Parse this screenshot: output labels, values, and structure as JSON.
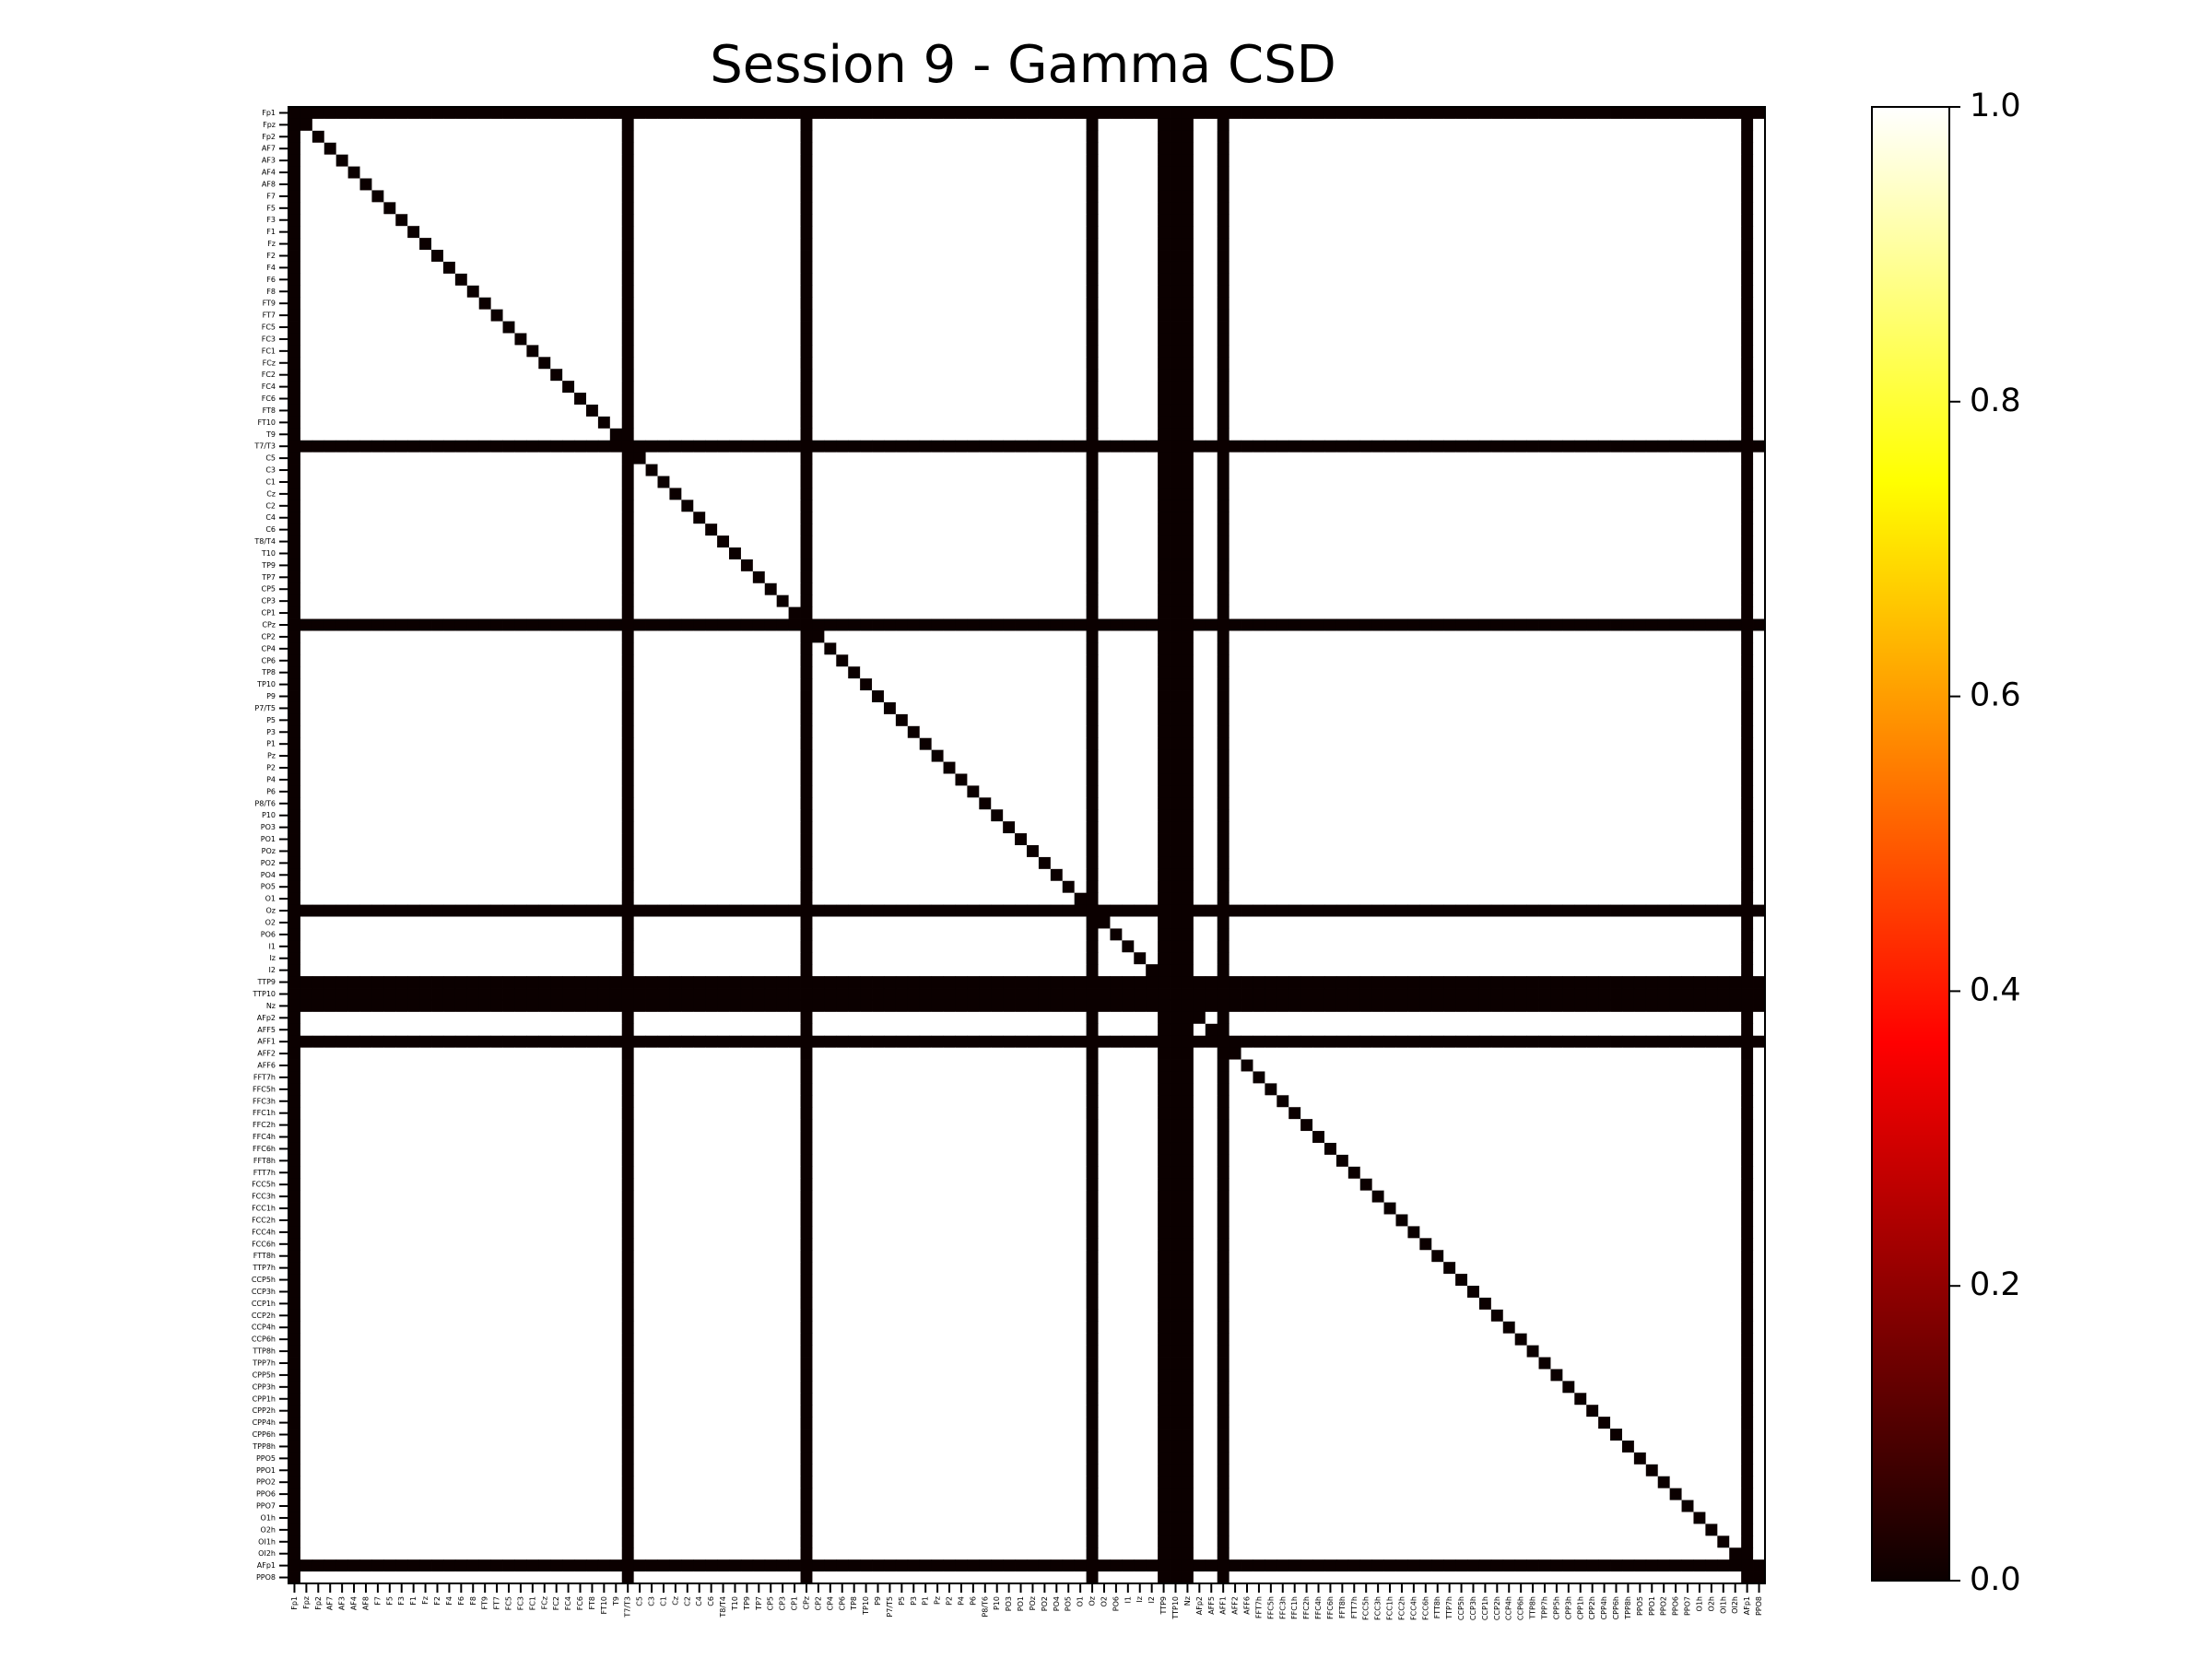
{
  "chart_data": {
    "type": "heatmap",
    "title": "Session 9 - Gamma CSD",
    "xlabel": "",
    "ylabel": "",
    "channels": [
      "Fp1",
      "Fpz",
      "Fp2",
      "AF7",
      "AF3",
      "AF4",
      "AF8",
      "F7",
      "F5",
      "F3",
      "F1",
      "Fz",
      "F2",
      "F4",
      "F6",
      "F8",
      "FT9",
      "FT7",
      "FC5",
      "FC3",
      "FC1",
      "FCz",
      "FC2",
      "FC4",
      "FC6",
      "FT8",
      "FT10",
      "T9",
      "T7/T3",
      "C5",
      "C3",
      "C1",
      "Cz",
      "C2",
      "C4",
      "C6",
      "T8/T4",
      "T10",
      "TP9",
      "TP7",
      "CP5",
      "CP3",
      "CP1",
      "CPz",
      "CP2",
      "CP4",
      "CP6",
      "TP8",
      "TP10",
      "P9",
      "P7/T5",
      "P5",
      "P3",
      "P1",
      "Pz",
      "P2",
      "P4",
      "P6",
      "P8/T6",
      "P10",
      "PO3",
      "PO1",
      "POz",
      "PO2",
      "PO4",
      "PO5",
      "O1",
      "Oz",
      "O2",
      "PO6",
      "I1",
      "Iz",
      "I2",
      "TTP9",
      "TTP10",
      "Nz",
      "AFp2",
      "AFF5",
      "AFF1",
      "AFF2",
      "AFF6",
      "FFT7h",
      "FFC5h",
      "FFC3h",
      "FFC1h",
      "FFC2h",
      "FFC4h",
      "FFC6h",
      "FFT8h",
      "FTT7h",
      "FCC5h",
      "FCC3h",
      "FCC1h",
      "FCC2h",
      "FCC4h",
      "FCC6h",
      "FTT8h",
      "TTP7h",
      "CCP5h",
      "CCP3h",
      "CCP1h",
      "CCP2h",
      "CCP4h",
      "CCP6h",
      "TTP8h",
      "TPP7h",
      "CPP5h",
      "CPP3h",
      "CPP1h",
      "CPP2h",
      "CPP4h",
      "CPP6h",
      "TPP8h",
      "PPO5",
      "PPO1",
      "PPO2",
      "PPO6",
      "PPO7",
      "O1h",
      "O2h",
      "OI1h",
      "OI2h",
      "AFp1",
      "PPO8"
    ],
    "zero_channels": [
      "Fp1",
      "T7/T3",
      "CPz",
      "Oz",
      "TTP9",
      "TTP10",
      "Nz",
      "AFF1",
      "AFp1"
    ],
    "values_description_free": true,
    "offdiag_value": 1.0,
    "diag_value": 0.0,
    "zero_channel_value": 0.0,
    "colormap": "hot",
    "vmin": 0.0,
    "vmax": 1.0,
    "colorbar_ticks": [
      "0.0",
      "0.2",
      "0.4",
      "0.6",
      "0.8",
      "1.0"
    ],
    "colorbar_tick_values": [
      0.0,
      0.2,
      0.4,
      0.6,
      0.8,
      1.0
    ]
  }
}
